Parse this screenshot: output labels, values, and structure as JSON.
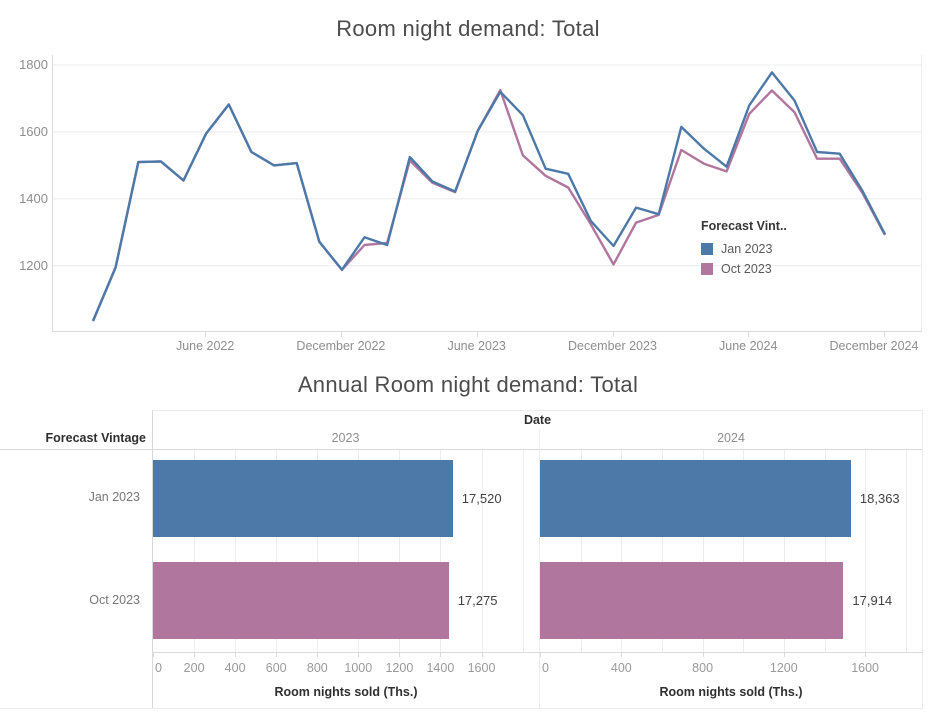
{
  "colors": {
    "series_blue": "#4d79a8",
    "series_pink": "#b0769e",
    "gridline": "#ececec",
    "axis_line": "#d9d9d9",
    "tick_text": "#8e8e8e",
    "title_text": "#4c4c4c",
    "value_text": "#414141"
  },
  "chart_data": [
    {
      "type": "line",
      "title": "Room night demand: Total",
      "legend_title": "Forecast Vint..",
      "legend_position": "inside-right",
      "grid": "horizontal",
      "ylim": [
        1005,
        1830
      ],
      "y_ticks": [
        1200,
        1400,
        1600,
        1800
      ],
      "x_tick_labels": [
        "June 2022",
        "December 2022",
        "June 2023",
        "December 2023",
        "June 2024",
        "December 2024"
      ],
      "x_tick_index": [
        5,
        11,
        17,
        23,
        29,
        35
      ],
      "x": [
        "Jan 2022",
        "Feb 2022",
        "Mar 2022",
        "Apr 2022",
        "May 2022",
        "Jun 2022",
        "Jul 2022",
        "Aug 2022",
        "Sep 2022",
        "Oct 2022",
        "Nov 2022",
        "Dec 2022",
        "Jan 2023",
        "Feb 2023",
        "Mar 2023",
        "Apr 2023",
        "May 2023",
        "Jun 2023",
        "Jul 2023",
        "Aug 2023",
        "Sep 2023",
        "Oct 2023",
        "Nov 2023",
        "Dec 2023",
        "Jan 2024",
        "Feb 2024",
        "Mar 2024",
        "Apr 2024",
        "May 2024",
        "Jun 2024",
        "Jul 2024",
        "Aug 2024",
        "Sep 2024",
        "Oct 2024",
        "Nov 2024",
        "Dec 2024"
      ],
      "series": [
        {
          "name": "Jan 2023",
          "color": "#4d79a8",
          "values": [
            1035,
            1195,
            1510,
            1512,
            1455,
            1595,
            1682,
            1540,
            1500,
            1507,
            1272,
            1188,
            1285,
            1262,
            1525,
            1452,
            1422,
            1603,
            1720,
            1650,
            1490,
            1475,
            1334,
            1259,
            1374,
            1354,
            1615,
            1550,
            1496,
            1679,
            1778,
            1694,
            1540,
            1535,
            1424,
            1294
          ]
        },
        {
          "name": "Oct 2023",
          "color": "#b0769e",
          "values": [
            1035,
            1195,
            1510,
            1512,
            1455,
            1595,
            1682,
            1540,
            1500,
            1507,
            1272,
            1188,
            1262,
            1268,
            1515,
            1448,
            1420,
            1603,
            1725,
            1530,
            1469,
            1434,
            1324,
            1204,
            1329,
            1352,
            1546,
            1505,
            1482,
            1654,
            1724,
            1659,
            1520,
            1520,
            1418,
            1292
          ]
        }
      ]
    },
    {
      "type": "bar",
      "title": "Annual Room night demand: Total",
      "col_header": "Date",
      "row_header": "Forecast Vintage",
      "rows": [
        "Jan 2023",
        "Oct 2023"
      ],
      "row_colors": [
        "#4d79a8",
        "#b0769e"
      ],
      "xlabel": "Room nights sold (Ths.)",
      "xlim": [
        0,
        1880
      ],
      "gridline_step": 200,
      "panes": [
        {
          "year": "2023",
          "x_ticks": [
            0,
            200,
            400,
            600,
            800,
            1000,
            1200,
            1400,
            1600
          ],
          "bars": [
            {
              "row": "Jan 2023",
              "label": "17,520",
              "axis_value": 1460
            },
            {
              "row": "Oct 2023",
              "label": "17,275",
              "axis_value": 1440
            }
          ]
        },
        {
          "year": "2024",
          "x_ticks": [
            0,
            400,
            800,
            1200,
            1600
          ],
          "bars": [
            {
              "row": "Jan 2023",
              "label": "18,363",
              "axis_value": 1530
            },
            {
              "row": "Oct 2023",
              "label": "17,914",
              "axis_value": 1493
            }
          ]
        }
      ]
    }
  ]
}
